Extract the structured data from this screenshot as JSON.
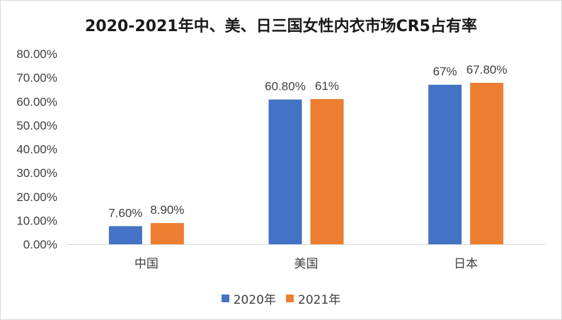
{
  "chart_data": {
    "type": "bar",
    "title": "2020-2021年中、美、日三国女性内衣市场CR5占有率",
    "categories": [
      "中国",
      "美国",
      "日本"
    ],
    "series": [
      {
        "name": "2020年",
        "values": [
          7.6,
          60.8,
          67
        ],
        "labels": [
          "7.60%",
          "60.80%",
          "67%"
        ],
        "color": "#4472C4"
      },
      {
        "name": "2021年",
        "values": [
          8.9,
          61,
          67.8
        ],
        "labels": [
          "8.90%",
          "61%",
          "67.80%"
        ],
        "color": "#ED7D31"
      }
    ],
    "ylim": [
      0,
      80
    ],
    "yticks": [
      "0.00%",
      "10.00%",
      "20.00%",
      "30.00%",
      "40.00%",
      "50.00%",
      "60.00%",
      "70.00%",
      "80.00%"
    ],
    "xlabel": "",
    "ylabel": "",
    "grid": false,
    "legend_position": "bottom"
  }
}
